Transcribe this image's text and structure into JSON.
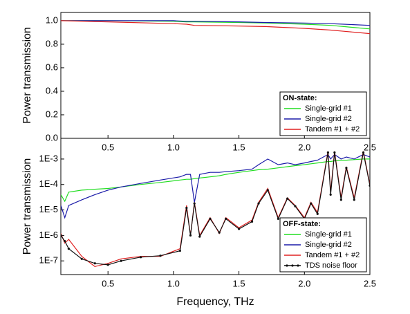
{
  "chart_data": [
    {
      "type": "line",
      "ylabel": "Power transmission",
      "x": [
        0.14,
        0.5,
        1.0,
        1.1,
        1.16,
        1.5,
        1.7,
        2.0,
        2.2,
        2.3,
        2.4,
        2.5
      ],
      "xlim": [
        0.14,
        2.5
      ],
      "xticks": [
        0.5,
        {
          "value": 1.0,
          "label": "1.0"
        },
        1.5,
        {
          "value": 2.0,
          "label": "2.0"
        },
        2.5
      ],
      "ylim": [
        0,
        1.07
      ],
      "yticks": [
        {
          "value": 0,
          "label": "0.0"
        },
        0.2,
        0.4,
        0.6,
        0.8,
        {
          "value": 1.0,
          "label": "1.0"
        }
      ],
      "legend_title": "ON-state:",
      "legend": "lower right",
      "series": [
        {
          "name": "Single-grid #1",
          "color": "#22dd22",
          "values": [
            1.0,
            1.0,
            0.995,
            0.99,
            0.99,
            0.985,
            0.98,
            0.97,
            0.96,
            0.95,
            0.94,
            0.93
          ]
        },
        {
          "name": "Single-grid #2",
          "color": "#1a1aa8",
          "values": [
            1.0,
            1.0,
            1.0,
            0.995,
            0.995,
            0.99,
            0.985,
            0.98,
            0.975,
            0.97,
            0.965,
            0.96
          ]
        },
        {
          "name": "Tandem #1 + #2",
          "color": "#e02020",
          "values": [
            1.0,
            0.99,
            0.975,
            0.97,
            0.96,
            0.955,
            0.95,
            0.935,
            0.92,
            0.91,
            0.9,
            0.89
          ]
        }
      ]
    },
    {
      "type": "line",
      "ylabel": "Power transmission",
      "xlabel": "Frequency, THz",
      "yscale": "log",
      "x": [
        0.14,
        0.17,
        0.2,
        0.3,
        0.4,
        0.5,
        0.6,
        0.75,
        0.9,
        1.05,
        1.1,
        1.13,
        1.16,
        1.2,
        1.28,
        1.35,
        1.4,
        1.5,
        1.6,
        1.65,
        1.72,
        1.8,
        1.87,
        1.93,
        2.0,
        2.05,
        2.1,
        2.18,
        2.2,
        2.23,
        2.28,
        2.32,
        2.38,
        2.45,
        2.5
      ],
      "xlim": [
        0.14,
        2.5
      ],
      "xticks": [
        0.5,
        {
          "value": 1.0,
          "label": "1.0"
        },
        1.5,
        {
          "value": 2.0,
          "label": "2.0"
        },
        2.5
      ],
      "ylim": [
        2.9e-08,
        0.0065
      ],
      "yticks": [
        {
          "value": 1e-07,
          "label": "1E-7"
        },
        {
          "value": 1e-06,
          "label": "1E-6"
        },
        {
          "value": 1e-05,
          "label": "1E-5"
        },
        {
          "value": 0.0001,
          "label": "1E-4"
        },
        {
          "value": 0.001,
          "label": "1E-3"
        }
      ],
      "legend_title": "OFF-state:",
      "legend": "lower right",
      "series": [
        {
          "name": "Single-grid #1",
          "color": "#22dd22",
          "values": [
            4e-05,
            2.2e-05,
            5e-05,
            6e-05,
            6.5e-05,
            7e-05,
            8e-05,
            0.0001,
            0.00012,
            0.00015,
            0.00016,
            0.00016,
            0.00017,
            0.00018,
            0.0002,
            0.00022,
            0.00025,
            0.0003,
            0.00035,
            0.00038,
            0.0004,
            0.00045,
            0.0005,
            0.00055,
            0.0006,
            0.00065,
            0.0007,
            0.0008,
            0.0008,
            0.00085,
            0.0009,
            0.0009,
            0.00095,
            0.001,
            0.001
          ]
        },
        {
          "name": "Single-grid #2",
          "color": "#1a1aa8",
          "values": [
            1.5e-05,
            5e-06,
            1.5e-05,
            2.5e-05,
            4e-05,
            6e-05,
            8e-05,
            0.00011,
            0.00015,
            0.0002,
            0.00025,
            0.00025,
            2e-05,
            0.00025,
            0.0003,
            0.0003,
            0.00032,
            0.00035,
            0.0004,
            0.0006,
            0.001,
            0.0006,
            0.0007,
            0.0006,
            0.0007,
            0.0008,
            0.0009,
            0.0015,
            0.001,
            0.0015,
            0.001,
            0.0012,
            0.001,
            0.0015,
            0.0012
          ]
        },
        {
          "name": "Tandem #1 + #2",
          "color": "#e02020",
          "values": [
            1.2e-06,
            5e-07,
            7e-07,
            1.5e-07,
            6e-08,
            8e-08,
            1.2e-07,
            1.5e-07,
            1.5e-07,
            3e-07,
            1.5e-05,
            1e-06,
            2e-05,
            1e-06,
            5e-06,
            1.2e-06,
            5e-06,
            2e-06,
            4e-06,
            2e-05,
            7e-05,
            5e-06,
            3e-05,
            1.5e-05,
            5e-06,
            2e-05,
            8e-06,
            0.002,
            5e-05,
            0.002,
            3e-05,
            0.0005,
            3e-05,
            0.002,
            0.0001
          ]
        },
        {
          "name": "TDS noise floor",
          "color": "#111111",
          "markers": true,
          "values": [
            1e-06,
            6e-07,
            3e-07,
            1.2e-07,
            8e-08,
            7e-08,
            1e-07,
            1.4e-07,
            1.6e-07,
            2.5e-07,
            1.2e-05,
            1e-06,
            1.8e-05,
            9e-07,
            4.5e-06,
            1.3e-06,
            4.5e-06,
            1.8e-06,
            3.5e-06,
            1.8e-05,
            6e-05,
            4.5e-06,
            2.8e-05,
            1.4e-05,
            4.5e-06,
            1.8e-05,
            7e-06,
            0.0018,
            4e-05,
            0.0018,
            2.5e-05,
            0.00045,
            2.5e-05,
            0.0018,
            9e-05
          ]
        }
      ]
    }
  ]
}
